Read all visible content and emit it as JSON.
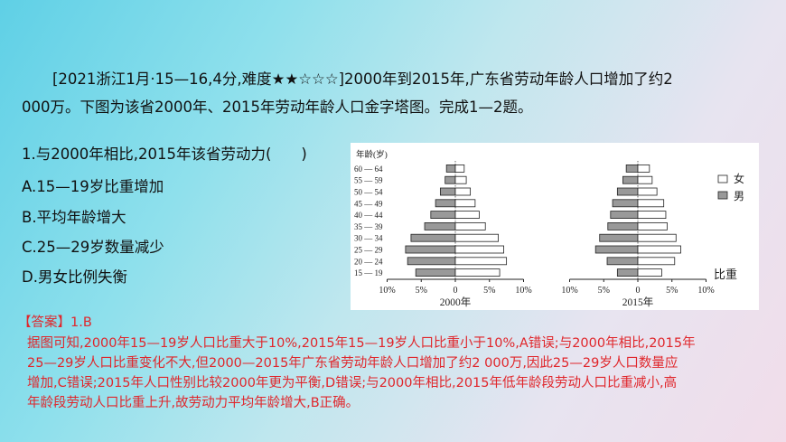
{
  "question": {
    "line1": "[2021浙江1月·15—16,4分,难度★★☆☆☆]2000年到2015年,广东省劳动年龄人口增加了约2",
    "line2": "000万。下图为该省2000年、2015年劳动年龄人口金字塔图。完成1—2题。"
  },
  "item": {
    "stem": "1.与2000年相比,2015年该省劳动力(　　)",
    "options": [
      "A.15—19岁比重增加",
      "B.平均年龄增大",
      "C.25—29岁数量减少",
      "D.男女比例失衡"
    ]
  },
  "answer": {
    "head": "【答案】1.B",
    "lines": [
      "据图可知,2000年15—19岁人口比重大于10%,2015年15—19岁人口比重小于10%,A错误;与2000年相比,2015年",
      "25—29岁人口比重变化不大,但2000—2015年广东省劳动年龄人口增加了约2 000万,因此25—29岁人口数量应",
      "增加,C错误;2015年人口性别比较2000年更为平衡,D错误;与2000年相比,2015年低年龄段劳动人口比重减小,高",
      "年龄段劳动人口比重上升,故劳动力平均年龄增大,B正确。"
    ]
  },
  "chart_data": {
    "type": "bar",
    "y_axis_label": "年龄(岁)",
    "age_groups": [
      "60 — 64",
      "55 — 59",
      "50 — 54",
      "45 — 49",
      "40 — 44",
      "35 — 39",
      "30 — 34",
      "25 — 29",
      "20 — 24",
      "15 — 19"
    ],
    "x_tick_labels": [
      "10%",
      "5%",
      "0",
      "5%",
      "10%"
    ],
    "x_axis_label": "比重",
    "legend": [
      {
        "name": "女",
        "color": "#ffffff"
      },
      {
        "name": "男",
        "color": "#999999"
      }
    ],
    "pyramids": [
      {
        "title": "2000年",
        "male": [
          1.3,
          1.5,
          2.2,
          2.9,
          3.6,
          4.5,
          6.5,
          7.3,
          7.0,
          5.8
        ],
        "female": [
          1.3,
          1.6,
          2.2,
          2.9,
          3.5,
          4.4,
          6.3,
          7.1,
          7.5,
          6.5
        ]
      },
      {
        "title": "2015年",
        "male": [
          1.7,
          2.2,
          3.0,
          3.7,
          4.0,
          4.4,
          5.6,
          6.2,
          4.5,
          3.0
        ],
        "female": [
          1.7,
          2.1,
          2.8,
          3.8,
          4.1,
          4.3,
          5.6,
          6.3,
          5.4,
          3.5
        ]
      }
    ],
    "xlim": [
      -10,
      10
    ]
  },
  "colors": {
    "answer": "#e0262b",
    "male_bar": "#999999",
    "female_bar": "#ffffff"
  }
}
